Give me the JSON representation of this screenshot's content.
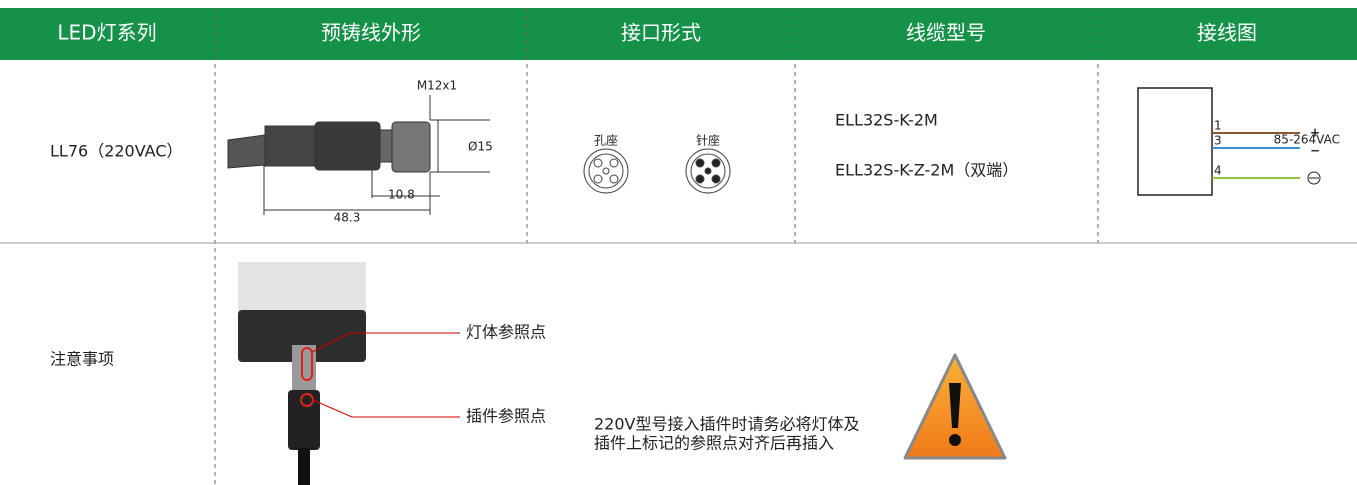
{
  "header": {
    "columns": [
      "LED灯系列",
      "预铸线外形",
      "接口形式",
      "线缆型号",
      "接线图"
    ]
  },
  "row1": {
    "series": "LL76（220VAC）",
    "drawing": {
      "thread": "M12x1",
      "diameter": "Ø15",
      "short_length": "10.8",
      "total_length": "48.3"
    },
    "interface": {
      "female": "孔座",
      "male": "针座"
    },
    "cables": [
      "ELL32S-K-2M",
      "ELL32S-K-Z-2M（双端）"
    ],
    "wiring": {
      "pins": [
        "1",
        "3",
        "4"
      ],
      "plus": "+",
      "minus": "−",
      "voltage": "85-264VAC"
    }
  },
  "row2": {
    "label": "注意事项",
    "callouts": [
      "灯体参照点",
      "插件参照点"
    ],
    "note": [
      "220V型号接入插件时请务必将灯体及",
      "插件上标记的参照点对齐后再插入"
    ]
  }
}
